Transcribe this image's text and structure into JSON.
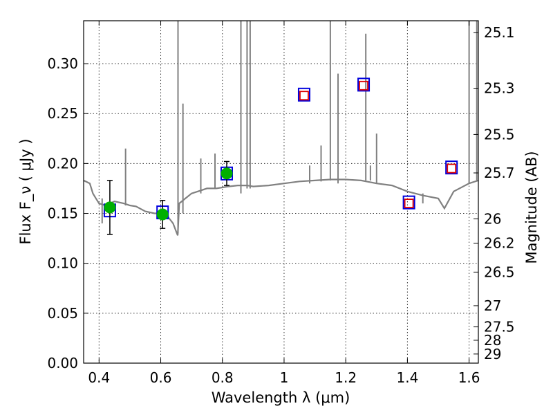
{
  "chart_data": {
    "type": "scatter",
    "xlabel": "Wavelength  λ (μm)",
    "ylabel": "Flux  F_ν  ( μJy )",
    "ylabel_right": "Magnitude (AB)",
    "xlim": [
      0.35,
      1.63
    ],
    "ylim": [
      0.0,
      0.343
    ],
    "x_ticks": [
      "0.4",
      "0.6",
      "0.8",
      "1",
      "1.2",
      "1.4",
      "1.6"
    ],
    "y_ticks": [
      "0.00",
      "0.05",
      "0.10",
      "0.15",
      "0.20",
      "0.25",
      "0.30"
    ],
    "right_ticks": [
      "25.1",
      "25.3",
      "25.5",
      "25.7",
      "26",
      "26.2",
      "26.5",
      "27",
      "27.5",
      "28",
      "29"
    ],
    "grid": true,
    "legend": "none",
    "colors": {
      "spectrum": "#808080",
      "observed": "#00b000",
      "model_box": "#0000dd",
      "upper_box": "#dd0000",
      "errorbar": "#000000"
    },
    "series": [
      {
        "marker": "circle",
        "x": [
          0.435,
          0.606,
          0.814
        ],
        "y": [
          0.156,
          0.149,
          0.19
        ],
        "yerr": [
          0.027,
          0.014,
          0.012
        ]
      },
      {
        "marker": "square",
        "x": [
          0.435,
          0.606,
          0.814,
          1.065,
          1.258,
          1.405,
          1.543
        ],
        "y": [
          0.153,
          0.151,
          0.19,
          0.269,
          0.279,
          0.161,
          0.196
        ]
      },
      {
        "marker": "small-square",
        "x": [
          1.065,
          1.258,
          1.405,
          1.543
        ],
        "y": [
          0.268,
          0.278,
          0.16,
          0.195
        ]
      },
      {
        "marker": "line",
        "x": [
          0.35,
          0.37,
          0.38,
          0.39,
          0.4,
          0.42,
          0.45,
          0.48,
          0.5,
          0.52,
          0.55,
          0.58,
          0.6,
          0.62,
          0.64,
          0.65,
          0.655,
          0.66,
          0.68,
          0.7,
          0.72,
          0.75,
          0.78,
          0.8,
          0.82,
          0.85,
          0.88,
          0.9,
          0.95,
          1.0,
          1.05,
          1.1,
          1.15,
          1.2,
          1.25,
          1.3,
          1.35,
          1.4,
          1.45,
          1.5,
          1.52,
          1.55,
          1.6,
          1.63
        ],
        "y": [
          0.183,
          0.18,
          0.17,
          0.165,
          0.16,
          0.158,
          0.162,
          0.16,
          0.158,
          0.157,
          0.152,
          0.15,
          0.15,
          0.148,
          0.14,
          0.132,
          0.128,
          0.16,
          0.165,
          0.17,
          0.172,
          0.175,
          0.175,
          0.176,
          0.177,
          0.178,
          0.178,
          0.177,
          0.178,
          0.18,
          0.182,
          0.183,
          0.184,
          0.184,
          0.183,
          0.18,
          0.178,
          0.172,
          0.168,
          0.165,
          0.155,
          0.172,
          0.18,
          0.183
        ]
      }
    ]
  }
}
